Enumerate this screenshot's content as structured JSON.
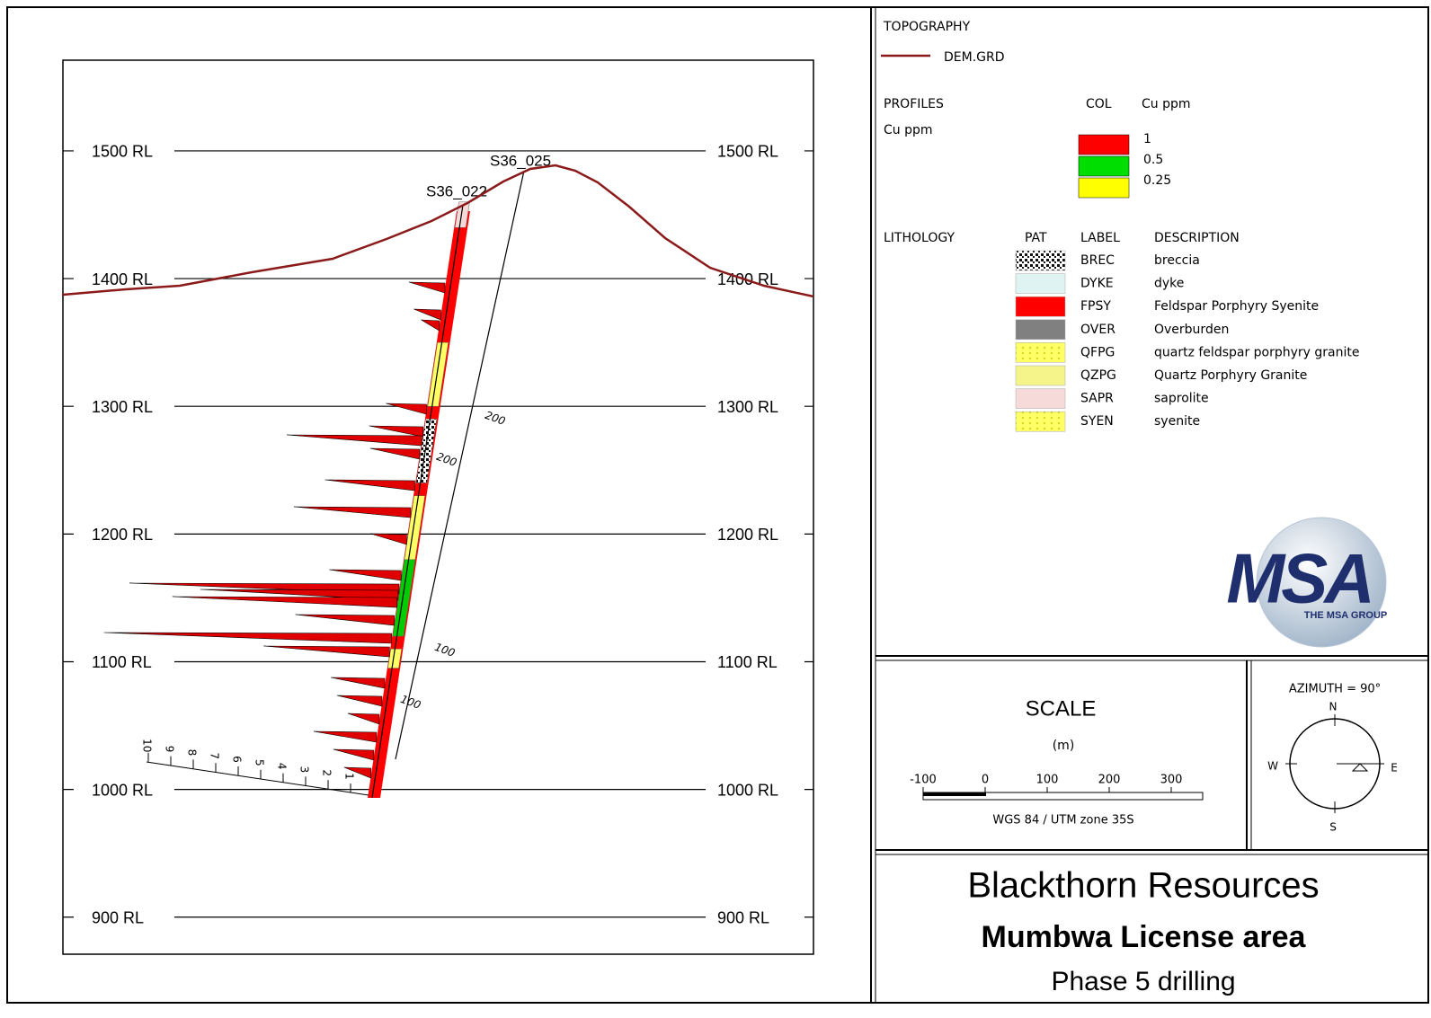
{
  "section": {
    "ylim": [
      871,
      1571
    ],
    "yticks": [
      {
        "value": 1500,
        "label": "1500 RL"
      },
      {
        "value": 1400,
        "label": "1400 RL"
      },
      {
        "value": 1300,
        "label": "1300 RL"
      },
      {
        "value": 1200,
        "label": "1200 RL"
      },
      {
        "value": 1100,
        "label": "1100 RL"
      },
      {
        "value": 1000,
        "label": "1000 RL"
      },
      {
        "value": 900,
        "label": "900 RL"
      }
    ],
    "holes": [
      "S36_025",
      "S36_022"
    ],
    "depth_labels": [
      "200",
      "200",
      "100",
      "100"
    ],
    "profile_scale": [
      "1",
      "2",
      "3",
      "4",
      "5",
      "6",
      "7",
      "8",
      "9",
      "10"
    ]
  },
  "legend": {
    "topography_title": "TOPOGRAPHY",
    "topography_item": "DEM.GRD",
    "profiles_title": "PROFILES",
    "profiles_field": "Cu ppm",
    "col_header": "COL",
    "col_field": "Cu ppm",
    "color_scale": [
      {
        "label": "1",
        "color": "#ff0000"
      },
      {
        "label": "0.5",
        "color": "#00dd00"
      },
      {
        "label": "0.25",
        "color": "#ffff00"
      }
    ],
    "lithology_title": "LITHOLOGY",
    "headers": [
      "PAT",
      "LABEL",
      "DESCRIPTION"
    ],
    "units": [
      {
        "label": "BREC",
        "description": "breccia",
        "color": "#222222"
      },
      {
        "label": "DYKE",
        "description": "dyke",
        "color": "#dff3f3"
      },
      {
        "label": "FPSY",
        "description": "Feldspar Porphyry Syenite",
        "color": "#ff0000"
      },
      {
        "label": "OVER",
        "description": "Overburden",
        "color": "#808080"
      },
      {
        "label": "QFPG",
        "description": "quartz feldspar porphyry granite",
        "color": "#ffff66"
      },
      {
        "label": "QZPG",
        "description": "Quartz Porphyry Granite",
        "color": "#f4f48a"
      },
      {
        "label": "SAPR",
        "description": "saprolite",
        "color": "#f6dada"
      },
      {
        "label": "SYEN",
        "description": "syenite",
        "color": "#ffff80"
      }
    ]
  },
  "logo": {
    "mark": "MSA",
    "caption": "THE MSA GROUP"
  },
  "scale": {
    "title": "SCALE",
    "unit": "(m)",
    "ticks": [
      "-100",
      "0",
      "100",
      "200",
      "300"
    ],
    "projection": "WGS 84 / UTM zone 35S"
  },
  "compass": {
    "azimuth": "AZIMUTH = 90°",
    "n": "N",
    "s": "S",
    "e": "E",
    "w": "W"
  },
  "title_block": {
    "company": "Blackthorn Resources",
    "project": "Mumbwa License area",
    "subtitle": "Phase 5 drilling"
  }
}
